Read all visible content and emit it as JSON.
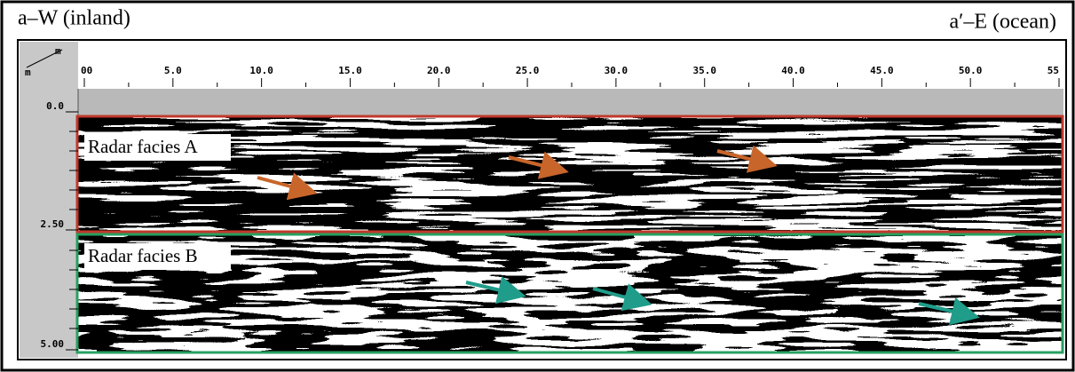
{
  "header": {
    "left": "a–W (inland)",
    "right": "a′–E (ocean)"
  },
  "corner_units": [
    "m",
    "m"
  ],
  "x_axis": {
    "labels": [
      "00",
      "5.0",
      "10.0",
      "15.0",
      "20.0",
      "25.0",
      "30.0",
      "35.0",
      "40.0",
      "45.0",
      "50.0",
      "55"
    ]
  },
  "y_axis": {
    "labels": [
      "0.0",
      "2.50",
      "5.00"
    ]
  },
  "facies": [
    {
      "label": "Radar facies A"
    },
    {
      "label": "Radar facies B"
    }
  ]
}
